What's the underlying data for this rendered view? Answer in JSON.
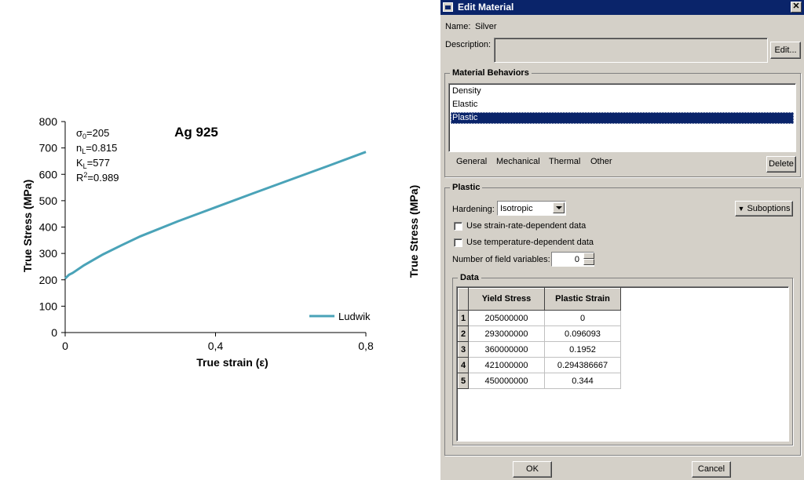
{
  "chart_data": {
    "type": "line",
    "title": "Ag 925",
    "xlabel": "True strain (ε)",
    "ylabel": "True Stress (MPa)",
    "xlim": [
      0,
      0.8
    ],
    "ylim": [
      0,
      800
    ],
    "x_ticks": [
      "0",
      "0,4",
      "0,8"
    ],
    "y_ticks": [
      "0",
      "100",
      "200",
      "300",
      "400",
      "500",
      "600",
      "700",
      "800"
    ],
    "annotations": [
      "σ0=205",
      "nL=0.815",
      "KL=577",
      "R²=0.989"
    ],
    "legend_position": "bottom-right",
    "series": [
      {
        "name": "Ludwik",
        "color": "#4aa3b8",
        "x": [
          0,
          0.01,
          0.02,
          0.05,
          0.1,
          0.15,
          0.2,
          0.3,
          0.4,
          0.5,
          0.6,
          0.7,
          0.8
        ],
        "y": [
          205,
          219,
          226,
          255,
          296,
          331,
          365,
          422,
          475,
          528,
          580,
          632,
          685
        ]
      }
    ]
  },
  "outer_ylabel": "True Stress (MPa)",
  "window": {
    "title": "Edit Material",
    "close_label": "✕",
    "name_label": "Name:",
    "name_value": "Silver",
    "description_label": "Description:",
    "description_value": "",
    "edit_button": "Edit...",
    "behaviors_title": "Material Behaviors",
    "behaviors": [
      "Density",
      "Elastic",
      "Plastic"
    ],
    "selected_behavior": "Plastic",
    "menu": [
      "General",
      "Mechanical",
      "Thermal",
      "Other"
    ],
    "delete_button": "Delete",
    "plastic_title": "Plastic",
    "hardening_label": "Hardening:",
    "hardening_value": "Isotropic",
    "suboptions_button": "Suboptions",
    "checkbox_strain_rate": "Use strain-rate-dependent data",
    "checkbox_temperature": "Use temperature-dependent data",
    "field_vars_label": "Number of field variables:",
    "field_vars_value": "0",
    "data_title": "Data",
    "table_headers": [
      "Yield Stress",
      "Plastic Strain"
    ],
    "table_rows": [
      {
        "n": "1",
        "yield": "205000000",
        "strain": "0"
      },
      {
        "n": "2",
        "yield": "293000000",
        "strain": "0.096093"
      },
      {
        "n": "3",
        "yield": "360000000",
        "strain": "0.1952"
      },
      {
        "n": "4",
        "yield": "421000000",
        "strain": "0.294386667"
      },
      {
        "n": "5",
        "yield": "450000000",
        "strain": "0.344"
      }
    ],
    "ok_button": "OK",
    "cancel_button": "Cancel"
  }
}
